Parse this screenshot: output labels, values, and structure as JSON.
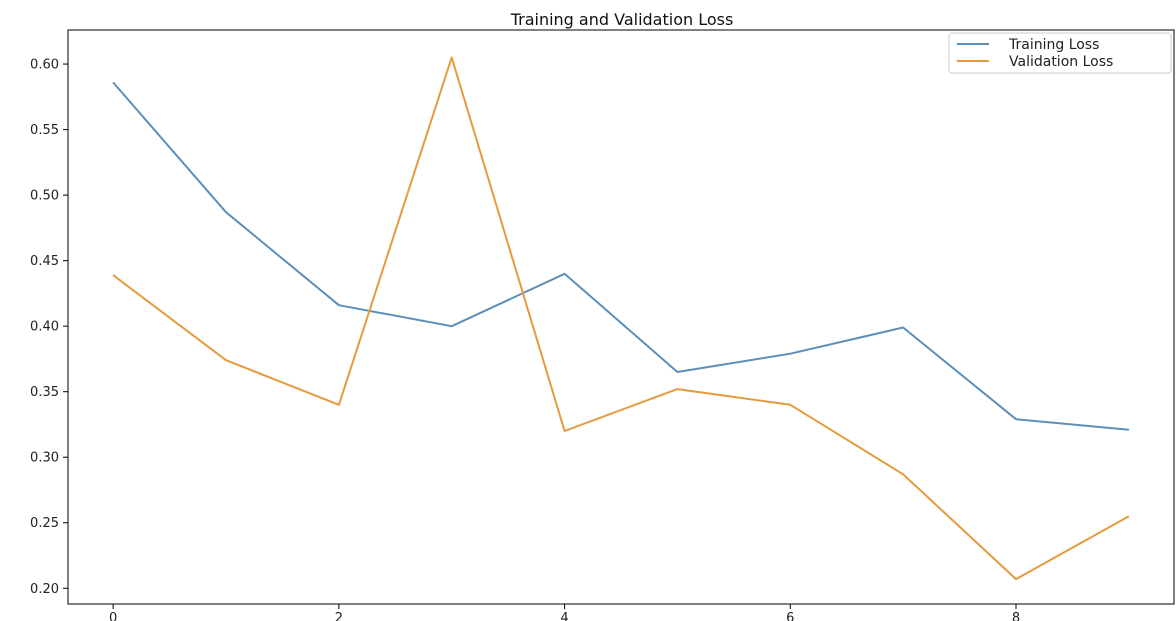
{
  "chart_data": {
    "type": "line",
    "title": "Training and Validation Loss",
    "xlabel": "",
    "ylabel": "",
    "x": [
      0,
      1,
      2,
      3,
      4,
      5,
      6,
      7,
      8,
      9
    ],
    "xticks": [
      0,
      2,
      4,
      6,
      8
    ],
    "xtick_labels": [
      "0",
      "2",
      "4",
      "6",
      "8"
    ],
    "yticks": [
      0.2,
      0.25,
      0.3,
      0.35,
      0.4,
      0.45,
      0.5,
      0.55,
      0.6
    ],
    "ytick_labels": [
      "0.20",
      "0.25",
      "0.30",
      "0.35",
      "0.40",
      "0.45",
      "0.50",
      "0.55",
      "0.60"
    ],
    "xlim": [
      -0.4,
      9.4
    ],
    "ylim": [
      0.188,
      0.626
    ],
    "grid": false,
    "legend_position": "top-right",
    "series": [
      {
        "name": "Training Loss",
        "color": "#5b8fb9",
        "values": [
          0.586,
          0.487,
          0.416,
          0.4,
          0.44,
          0.365,
          0.379,
          0.399,
          0.329,
          0.321
        ]
      },
      {
        "name": "Validation Loss",
        "color": "#e69a3c",
        "values": [
          0.439,
          0.374,
          0.34,
          0.605,
          0.32,
          0.352,
          0.34,
          0.287,
          0.207,
          0.255
        ]
      }
    ]
  }
}
